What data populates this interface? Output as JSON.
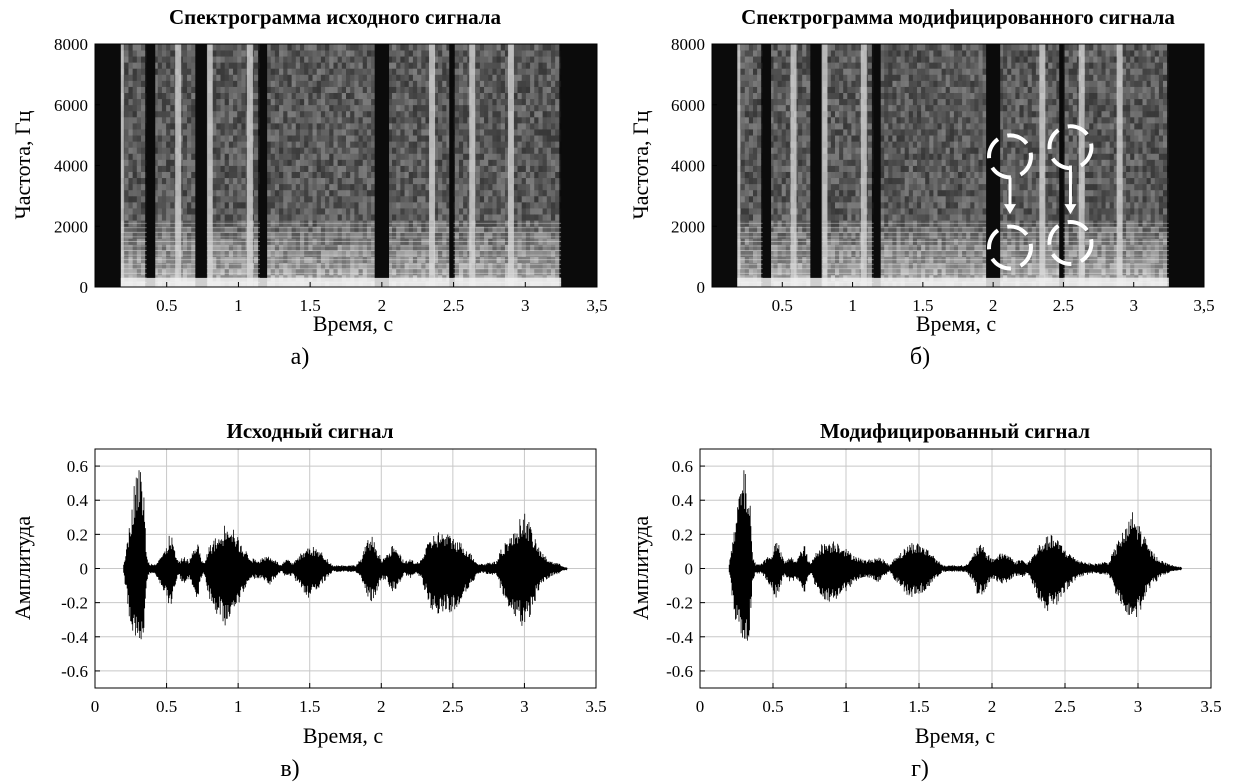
{
  "chart_data": [
    {
      "type": "heatmap",
      "panel_label": "а)",
      "title": "Спектрограмма исходного сигнала",
      "xlabel": "Время, с",
      "ylabel": "Частота, Гц",
      "x_tick_labels": [
        "0.5",
        "1",
        "1.5",
        "2",
        "2.5",
        "3",
        "3,5"
      ],
      "y_tick_labels": [
        "0",
        "2000",
        "4000",
        "6000",
        "8000"
      ],
      "xlim": [
        0,
        3.5
      ],
      "ylim": [
        0,
        8000
      ],
      "colormap": "grayscale",
      "dark_gaps_s": [
        [
          0.0,
          0.18
        ],
        [
          0.36,
          0.42
        ],
        [
          0.7,
          0.78
        ],
        [
          1.15,
          1.2
        ],
        [
          1.95,
          2.05
        ],
        [
          2.47,
          2.5
        ],
        [
          3.25,
          3.5
        ]
      ],
      "bright_bursts_s": [
        0.18,
        0.58,
        0.8,
        1.08,
        1.98,
        2.35,
        2.63,
        2.9
      ]
    },
    {
      "type": "heatmap",
      "panel_label": "б)",
      "title": "Спектрограмма модифицированного сигнала",
      "xlabel": "Время, с",
      "ylabel": "Частота, Гц",
      "x_tick_labels": [
        "0.5",
        "1",
        "1.5",
        "2",
        "2.5",
        "3",
        "3,5"
      ],
      "y_tick_labels": [
        "0",
        "2000",
        "4000",
        "6000",
        "8000"
      ],
      "xlim": [
        0,
        3.5
      ],
      "ylim": [
        0,
        8000
      ],
      "colormap": "grayscale",
      "dark_gaps_s": [
        [
          0.0,
          0.18
        ],
        [
          0.36,
          0.42
        ],
        [
          0.7,
          0.78
        ],
        [
          1.15,
          1.2
        ],
        [
          1.95,
          2.05
        ],
        [
          2.47,
          2.5
        ],
        [
          3.25,
          3.5
        ]
      ],
      "bright_bursts_s": [
        0.18,
        0.58,
        0.8,
        1.08,
        1.98,
        2.35,
        2.63,
        2.9
      ],
      "annotations": [
        {
          "type": "dashed-circle",
          "t": 2.12,
          "f": 4300
        },
        {
          "type": "dashed-circle",
          "t": 2.12,
          "f": 1300
        },
        {
          "type": "arrow",
          "t": 2.12,
          "f_from": 3600,
          "f_to": 2400
        },
        {
          "type": "dashed-circle",
          "t": 2.55,
          "f": 4600
        },
        {
          "type": "dashed-circle",
          "t": 2.55,
          "f": 1450
        },
        {
          "type": "arrow",
          "t": 2.55,
          "f_from": 4000,
          "f_to": 2400
        }
      ]
    },
    {
      "type": "line",
      "panel_label": "в)",
      "title": "Исходный сигнал",
      "xlabel": "Время, с",
      "ylabel": "Амплитуда",
      "x_tick_labels": [
        "0",
        "0.5",
        "1",
        "1.5",
        "2",
        "2.5",
        "3",
        "3.5"
      ],
      "y_tick_labels": [
        "-0.6",
        "-0.4",
        "-0.2",
        "0",
        "0.2",
        "0.4",
        "0.6"
      ],
      "xlim": [
        0,
        3.5
      ],
      "ylim": [
        -0.7,
        0.7
      ],
      "grid": true,
      "signal_start_s": 0.2,
      "signal_end_s": 3.3,
      "envelope": {
        "t": [
          0.2,
          0.24,
          0.28,
          0.3,
          0.32,
          0.34,
          0.36,
          0.38,
          0.42,
          0.46,
          0.5,
          0.52,
          0.54,
          0.56,
          0.58,
          0.62,
          0.66,
          0.7,
          0.72,
          0.74,
          0.76,
          0.8,
          0.84,
          0.88,
          0.92,
          0.95,
          0.98,
          1.02,
          1.06,
          1.1,
          1.14,
          1.18,
          1.22,
          1.26,
          1.3,
          1.34,
          1.38,
          1.42,
          1.46,
          1.5,
          1.54,
          1.58,
          1.62,
          1.66,
          1.7,
          1.74,
          1.78,
          1.82,
          1.86,
          1.9,
          1.93,
          1.96,
          2.0,
          2.04,
          2.08,
          2.12,
          2.16,
          2.2,
          2.24,
          2.28,
          2.32,
          2.36,
          2.4,
          2.44,
          2.48,
          2.52,
          2.56,
          2.6,
          2.64,
          2.68,
          2.72,
          2.76,
          2.8,
          2.84,
          2.88,
          2.92,
          2.96,
          3.0,
          3.04,
          3.08,
          3.12,
          3.16,
          3.2,
          3.24,
          3.28,
          3.3
        ],
        "upper": [
          0.03,
          0.25,
          0.55,
          0.6,
          0.58,
          0.5,
          0.08,
          0.03,
          0.03,
          0.08,
          0.12,
          0.22,
          0.18,
          0.1,
          0.04,
          0.07,
          0.05,
          0.14,
          0.16,
          0.06,
          0.03,
          0.14,
          0.18,
          0.2,
          0.3,
          0.28,
          0.22,
          0.14,
          0.1,
          0.06,
          0.05,
          0.07,
          0.08,
          0.05,
          0.02,
          0.06,
          0.03,
          0.08,
          0.1,
          0.14,
          0.12,
          0.1,
          0.06,
          0.02,
          0.02,
          0.02,
          0.02,
          0.02,
          0.06,
          0.16,
          0.2,
          0.14,
          0.06,
          0.08,
          0.14,
          0.1,
          0.04,
          0.06,
          0.03,
          0.06,
          0.14,
          0.2,
          0.22,
          0.21,
          0.2,
          0.18,
          0.15,
          0.12,
          0.07,
          0.03,
          0.03,
          0.04,
          0.04,
          0.12,
          0.18,
          0.2,
          0.28,
          0.34,
          0.26,
          0.16,
          0.1,
          0.06,
          0.04,
          0.03,
          0.01,
          0.01
        ],
        "lower": [
          -0.03,
          -0.3,
          -0.45,
          -0.5,
          -0.48,
          -0.4,
          -0.08,
          -0.03,
          -0.03,
          -0.1,
          -0.18,
          -0.26,
          -0.2,
          -0.1,
          -0.04,
          -0.1,
          -0.06,
          -0.16,
          -0.18,
          -0.06,
          -0.03,
          -0.18,
          -0.26,
          -0.3,
          -0.35,
          -0.3,
          -0.24,
          -0.18,
          -0.1,
          -0.06,
          -0.06,
          -0.08,
          -0.1,
          -0.06,
          -0.02,
          -0.06,
          -0.04,
          -0.1,
          -0.14,
          -0.18,
          -0.14,
          -0.1,
          -0.06,
          -0.02,
          -0.02,
          -0.02,
          -0.02,
          -0.02,
          -0.06,
          -0.16,
          -0.2,
          -0.16,
          -0.06,
          -0.08,
          -0.14,
          -0.1,
          -0.04,
          -0.06,
          -0.03,
          -0.06,
          -0.18,
          -0.26,
          -0.28,
          -0.27,
          -0.26,
          -0.24,
          -0.2,
          -0.14,
          -0.08,
          -0.03,
          -0.03,
          -0.04,
          -0.04,
          -0.14,
          -0.22,
          -0.26,
          -0.32,
          -0.36,
          -0.28,
          -0.18,
          -0.1,
          -0.06,
          -0.04,
          -0.03,
          -0.01,
          -0.01
        ]
      }
    },
    {
      "type": "line",
      "panel_label": "г)",
      "title": "Модифицированный сигнал",
      "xlabel": "Время, с",
      "ylabel": "Амплитуда",
      "x_tick_labels": [
        "0",
        "0.5",
        "1",
        "1.5",
        "2",
        "2.5",
        "3",
        "3.5"
      ],
      "y_tick_labels": [
        "-0.6",
        "-0.4",
        "-0.2",
        "0",
        "0.2",
        "0.4",
        "0.6"
      ],
      "xlim": [
        0,
        3.5
      ],
      "ylim": [
        -0.7,
        0.7
      ],
      "grid": true,
      "signal_start_s": 0.2,
      "signal_end_s": 3.3,
      "envelope": {
        "t": [
          0.2,
          0.24,
          0.28,
          0.3,
          0.32,
          0.34,
          0.36,
          0.38,
          0.42,
          0.46,
          0.5,
          0.52,
          0.54,
          0.56,
          0.58,
          0.62,
          0.66,
          0.7,
          0.72,
          0.74,
          0.76,
          0.8,
          0.84,
          0.88,
          0.92,
          0.95,
          0.98,
          1.02,
          1.06,
          1.1,
          1.14,
          1.18,
          1.22,
          1.26,
          1.3,
          1.34,
          1.38,
          1.42,
          1.46,
          1.5,
          1.54,
          1.58,
          1.62,
          1.66,
          1.7,
          1.74,
          1.78,
          1.82,
          1.86,
          1.9,
          1.93,
          1.96,
          2.0,
          2.04,
          2.08,
          2.12,
          2.16,
          2.2,
          2.24,
          2.28,
          2.32,
          2.36,
          2.4,
          2.44,
          2.48,
          2.52,
          2.56,
          2.6,
          2.64,
          2.68,
          2.72,
          2.76,
          2.8,
          2.84,
          2.88,
          2.92,
          2.96,
          3.0,
          3.04,
          3.08,
          3.12,
          3.16,
          3.2,
          3.24,
          3.28,
          3.3
        ],
        "upper": [
          0.03,
          0.25,
          0.55,
          0.58,
          0.55,
          0.45,
          0.08,
          0.03,
          0.03,
          0.07,
          0.1,
          0.17,
          0.14,
          0.08,
          0.04,
          0.07,
          0.05,
          0.12,
          0.14,
          0.05,
          0.03,
          0.12,
          0.15,
          0.16,
          0.17,
          0.16,
          0.14,
          0.1,
          0.08,
          0.06,
          0.05,
          0.06,
          0.07,
          0.05,
          0.02,
          0.08,
          0.1,
          0.14,
          0.16,
          0.15,
          0.13,
          0.1,
          0.06,
          0.02,
          0.02,
          0.02,
          0.02,
          0.02,
          0.06,
          0.14,
          0.14,
          0.1,
          0.06,
          0.08,
          0.1,
          0.08,
          0.04,
          0.06,
          0.03,
          0.08,
          0.14,
          0.18,
          0.2,
          0.18,
          0.14,
          0.1,
          0.07,
          0.05,
          0.04,
          0.03,
          0.03,
          0.04,
          0.04,
          0.12,
          0.2,
          0.24,
          0.34,
          0.28,
          0.2,
          0.12,
          0.08,
          0.05,
          0.03,
          0.02,
          0.01,
          0.01
        ],
        "lower": [
          -0.03,
          -0.3,
          -0.45,
          -0.48,
          -0.46,
          -0.38,
          -0.08,
          -0.03,
          -0.03,
          -0.08,
          -0.14,
          -0.18,
          -0.15,
          -0.08,
          -0.04,
          -0.09,
          -0.06,
          -0.14,
          -0.16,
          -0.05,
          -0.03,
          -0.14,
          -0.18,
          -0.2,
          -0.2,
          -0.18,
          -0.15,
          -0.12,
          -0.08,
          -0.06,
          -0.05,
          -0.07,
          -0.08,
          -0.05,
          -0.02,
          -0.08,
          -0.12,
          -0.16,
          -0.18,
          -0.16,
          -0.14,
          -0.1,
          -0.06,
          -0.02,
          -0.02,
          -0.02,
          -0.02,
          -0.02,
          -0.06,
          -0.16,
          -0.16,
          -0.12,
          -0.06,
          -0.08,
          -0.1,
          -0.08,
          -0.04,
          -0.06,
          -0.03,
          -0.1,
          -0.18,
          -0.24,
          -0.26,
          -0.22,
          -0.16,
          -0.12,
          -0.08,
          -0.05,
          -0.04,
          -0.03,
          -0.03,
          -0.04,
          -0.04,
          -0.14,
          -0.22,
          -0.26,
          -0.34,
          -0.28,
          -0.2,
          -0.12,
          -0.08,
          -0.05,
          -0.03,
          -0.02,
          -0.01,
          -0.01
        ]
      }
    }
  ]
}
